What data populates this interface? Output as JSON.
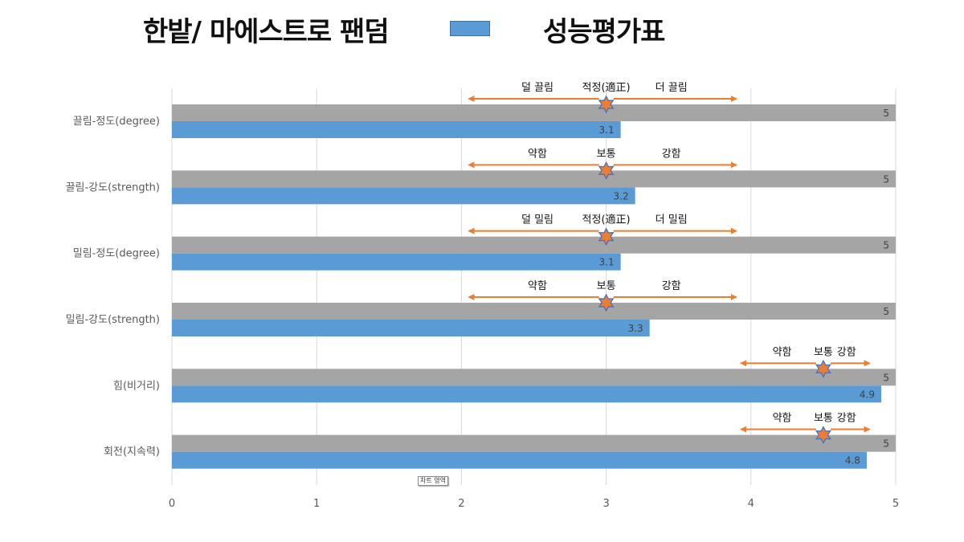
{
  "header": {
    "title": "한밭/ 마에스트로 팬덤",
    "legend_label": "성능평가표"
  },
  "tooltip": "차트 영역",
  "colors": {
    "series_blue": "#5b9bd5",
    "series_gray": "#a5a5a5",
    "arrow": "#ed7d31",
    "star_fill": "#ed7d31",
    "star_stroke": "#4472c4"
  },
  "chart_data": {
    "type": "bar",
    "orientation": "horizontal",
    "categories": [
      "끌림-정도(degree)",
      "끌림-강도(strength)",
      "밀림-정도(degree)",
      "밀림-강도(strength)",
      "힘(비거리)",
      "회전(지속력)"
    ],
    "series": [
      {
        "name": "",
        "values": [
          5,
          5,
          5,
          5,
          5,
          5
        ]
      },
      {
        "name": "성능평가표",
        "values": [
          3.1,
          3.2,
          3.1,
          3.3,
          4.9,
          4.8
        ]
      }
    ],
    "xlim": [
      0,
      5
    ],
    "xticks": [
      "0",
      "1",
      "2",
      "3",
      "4",
      "5"
    ],
    "grid": true,
    "legend": "top",
    "annotations": [
      {
        "category": "끌림-정도(degree)",
        "left": "덜 끌림",
        "mid": "적정(適正)",
        "right": "더 끌림",
        "star": 3,
        "range": [
          2.05,
          3.9
        ]
      },
      {
        "category": "끌림-강도(strength)",
        "left": "약함",
        "mid": "보통",
        "right": "강함",
        "star": 3,
        "range": [
          2.05,
          3.9
        ]
      },
      {
        "category": "밀림-정도(degree)",
        "left": "덜 밀림",
        "mid": "적정(適正)",
        "right": "더 밀림",
        "star": 3,
        "range": [
          2.05,
          3.9
        ]
      },
      {
        "category": "밀림-강도(strength)",
        "left": "약함",
        "mid": "보통",
        "right": "강함",
        "star": 3,
        "range": [
          2.05,
          3.9
        ]
      },
      {
        "category": "힘(비거리)",
        "left": "약함",
        "mid": "보통",
        "right": "강함",
        "star": 4.5,
        "range": [
          3.93,
          4.82
        ]
      },
      {
        "category": "회전(지속력)",
        "left": "약함",
        "mid": "보통",
        "right": "강함",
        "star": 4.5,
        "range": [
          3.93,
          4.82
        ]
      }
    ]
  }
}
